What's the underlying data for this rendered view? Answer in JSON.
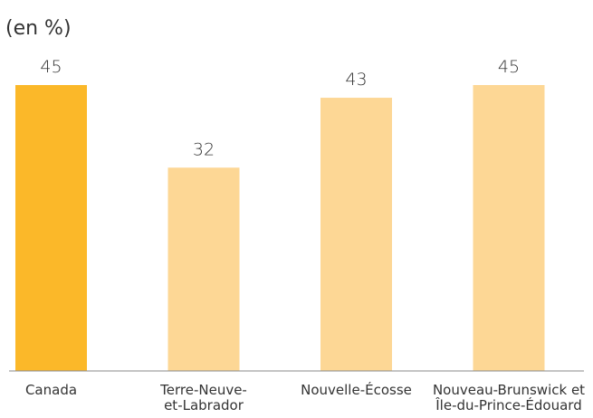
{
  "chart_data": {
    "type": "bar",
    "title": "(en %)",
    "categories": [
      "Canada",
      "Terre-Neuve-\net-Labrador",
      "Nouvelle-Écosse",
      "Nouveau-Brunswick et\nÎle-du-Prince-Édouard"
    ],
    "values": [
      45,
      32,
      43,
      45
    ],
    "colors": [
      "#fbb829",
      "#fdd795",
      "#fdd795",
      "#fdd795"
    ],
    "ylim": [
      0,
      45
    ]
  }
}
